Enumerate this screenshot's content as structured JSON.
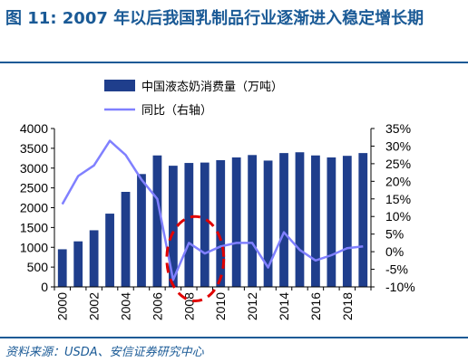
{
  "figure": {
    "title": "图 11: 2007 年以后我国乳制品行业逐渐进入稳定增长期",
    "source": "资料来源：USDA、安信证券研究中心"
  },
  "colors": {
    "bar": "#1f3e8c",
    "line": "#8080ff",
    "title": "#1a5a96",
    "annotation": "#e00000"
  },
  "chart_data": {
    "type": "bar",
    "x": [
      2000,
      2001,
      2002,
      2003,
      2004,
      2005,
      2006,
      2007,
      2008,
      2009,
      2010,
      2011,
      2012,
      2013,
      2014,
      2015,
      2016,
      2017,
      2018,
      2019
    ],
    "x_tick_labels": [
      "2000",
      "2002",
      "2004",
      "2006",
      "2008",
      "2010",
      "2012",
      "2014",
      "2016",
      "2018"
    ],
    "series": [
      {
        "name": "中国液态奶消费量（万吨）",
        "type": "bar",
        "axis": "left",
        "values": [
          950,
          1150,
          1430,
          1850,
          2400,
          2850,
          3320,
          3060,
          3130,
          3140,
          3200,
          3270,
          3330,
          3190,
          3380,
          3400,
          3320,
          3270,
          3310,
          3380
        ]
      },
      {
        "name": "同比（右轴）",
        "type": "line",
        "axis": "right",
        "values": [
          13.5,
          21.5,
          24.5,
          31.5,
          27.5,
          20.5,
          15.0,
          -8.0,
          2.5,
          -0.5,
          1.5,
          2.5,
          2.5,
          -4.5,
          5.5,
          0.5,
          -2.5,
          -1.0,
          1.0,
          1.5
        ]
      }
    ],
    "y_left": {
      "min": 0,
      "max": 4000,
      "step": 500,
      "tick_labels": [
        "0",
        "500",
        "1000",
        "1500",
        "2000",
        "2500",
        "3000",
        "3500",
        "4000"
      ]
    },
    "y_right": {
      "min": -10,
      "max": 35,
      "step": 5,
      "tick_labels": [
        "-10%",
        "-5%",
        "0%",
        "5%",
        "10%",
        "15%",
        "20%",
        "25%",
        "30%",
        "35%"
      ]
    },
    "legend_position": "top",
    "grid": false,
    "annotation": {
      "shape": "dashed-ellipse",
      "x_from": 2006.6,
      "x_to": 2010.2,
      "y_right_from": -14,
      "y_right_to": 10
    }
  }
}
